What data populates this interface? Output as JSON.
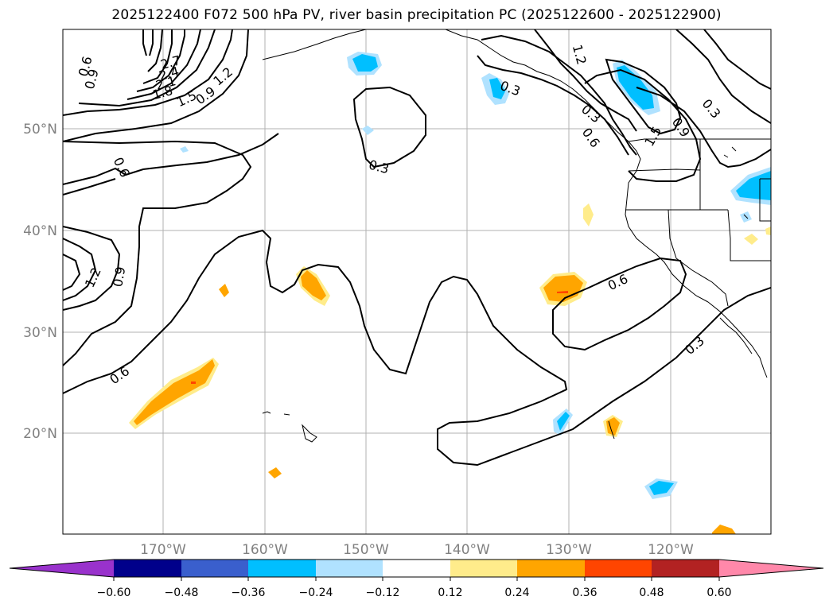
{
  "title": "2025122400 F072 500 hPa PV, river basin precipitation PC (2025122600 - 2025122900)",
  "map": {
    "lat_ticks": [
      "50°N",
      "40°N",
      "30°N",
      "20°N"
    ],
    "lon_ticks": [
      "170°W",
      "160°W",
      "150°W",
      "140°W",
      "130°W",
      "120°W"
    ],
    "contour_labels": [
      "0.6",
      "0.9",
      "2.7",
      "2.4",
      "2.1",
      "1.8",
      "1.5",
      "1.2",
      "0.9",
      "0.6",
      "1.2",
      "0.9",
      "0.6",
      "0.3",
      "0.3",
      "1.2",
      "0.3",
      "0.6",
      "0.9",
      "1.5",
      "0.3",
      "0.6",
      "0.3"
    ]
  },
  "colorbar": {
    "ticks": [
      "−0.60",
      "−0.48",
      "−0.36",
      "−0.24",
      "−0.12",
      "0.12",
      "0.24",
      "0.36",
      "0.48",
      "0.60"
    ],
    "colors": [
      "#9932cc",
      "#00008b",
      "#3a5fcd",
      "#00bfff",
      "#b0e2ff",
      "#ffffff",
      "#ffec8b",
      "#ffa500",
      "#ff4500",
      "#b22222",
      "#ff88aa"
    ]
  }
}
